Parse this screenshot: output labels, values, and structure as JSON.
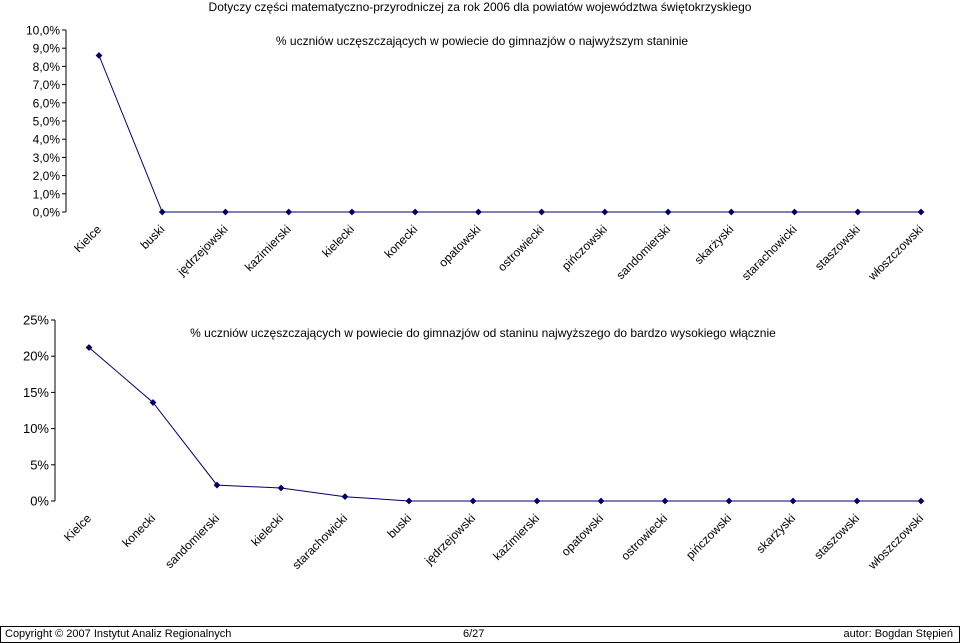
{
  "page": {
    "title": "Dotyczy części matematyczno-przyrodniczej za rok 2006 dla powiatów województwa świętokrzyskiego"
  },
  "footer": {
    "copyright": "Copyright © 2007 Instytut Analiz Regionalnych",
    "page_number": "6/27",
    "author": "autor: Bogdan Stępień"
  },
  "colors": {
    "line": "#000066",
    "marker": "#000066"
  },
  "chart_data": [
    {
      "type": "line",
      "title": "% uczniów uczęszczających w powiecie do gimnazjów o najwyższym staninie",
      "xlabel": "",
      "ylabel": "",
      "ylim": [
        0,
        10
      ],
      "yticks": [
        0,
        1,
        2,
        3,
        4,
        5,
        6,
        7,
        8,
        9,
        10
      ],
      "ytick_labels": [
        "0,0%",
        "1,0%",
        "2,0%",
        "3,0%",
        "4,0%",
        "5,0%",
        "6,0%",
        "7,0%",
        "8,0%",
        "9,0%",
        "10,0%"
      ],
      "categories": [
        "Kielce",
        "buski",
        "jędrzejowski",
        "kazimierski",
        "kielecki",
        "konecki",
        "opatowski",
        "ostrowiecki",
        "pińczowski",
        "sandomierski",
        "skarżyski",
        "starachowicki",
        "staszowski",
        "włoszczowski"
      ],
      "values": [
        8.6,
        0,
        0,
        0,
        0,
        0,
        0,
        0,
        0,
        0,
        0,
        0,
        0,
        0
      ],
      "grid": false,
      "legend": "none"
    },
    {
      "type": "line",
      "title": "% uczniów uczęszczających w powiecie do gimnazjów od staninu najwyższego do bardzo wysokiego włącznie",
      "xlabel": "",
      "ylabel": "",
      "ylim": [
        0,
        25
      ],
      "yticks": [
        0,
        5,
        10,
        15,
        20,
        25
      ],
      "ytick_labels": [
        "0%",
        "5%",
        "10%",
        "15%",
        "20%",
        "25%"
      ],
      "categories": [
        "Kielce",
        "konecki",
        "sandomierski",
        "kielecki",
        "starachowicki",
        "buski",
        "jędrzejowski",
        "kazimierski",
        "opatowski",
        "ostrowiecki",
        "pińczowski",
        "skarżyski",
        "staszowski",
        "włoszczowski"
      ],
      "values": [
        21.2,
        13.6,
        2.2,
        1.8,
        0.6,
        0,
        0,
        0,
        0,
        0,
        0,
        0,
        0,
        0
      ],
      "grid": false,
      "legend": "none"
    }
  ]
}
